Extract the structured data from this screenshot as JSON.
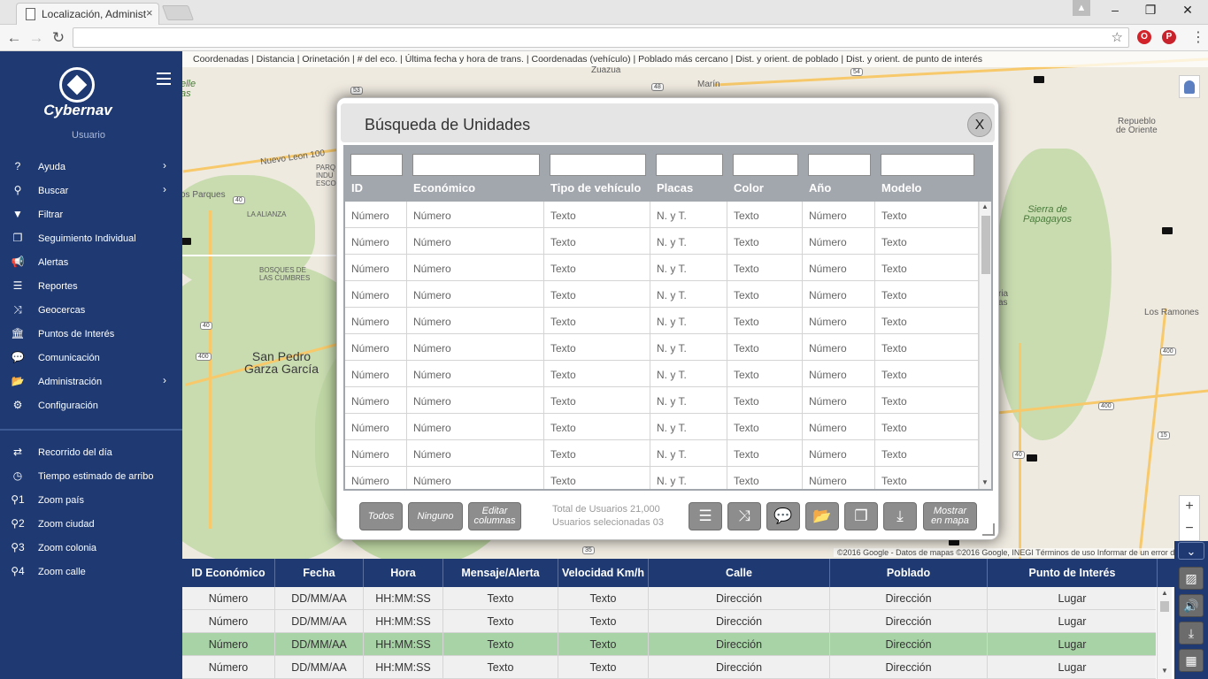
{
  "browser": {
    "tab_title": "Localización, Administrac",
    "tab_close": "×",
    "win_minimize": "–",
    "win_restore": "❐",
    "win_close": "✕",
    "back": "←",
    "forward": "→",
    "reload": "↻",
    "star": "☆",
    "opera_glyph": "O",
    "pinterest_glyph": "P",
    "menu": "⋮",
    "profile_glyph": "▲"
  },
  "sidebar": {
    "brand": "Cybernav",
    "user": "Usuario",
    "menu": [
      {
        "icon": "?",
        "icon_name": "help-icon",
        "label": "Ayuda",
        "chevron": true
      },
      {
        "icon": "⚲",
        "icon_name": "search-icon",
        "label": "Buscar",
        "chevron": true
      },
      {
        "icon": "▼",
        "icon_name": "filter-icon",
        "label": "Filtrar",
        "chevron": false
      },
      {
        "icon": "❐",
        "icon_name": "windows-icon",
        "label": "Seguimiento Individual",
        "chevron": false
      },
      {
        "icon": "📢",
        "icon_name": "megaphone-icon",
        "label": "Alertas",
        "chevron": false
      },
      {
        "icon": "☰",
        "icon_name": "list-icon",
        "label": "Reportes",
        "chevron": false
      },
      {
        "icon": "⤨",
        "icon_name": "shuffle-icon",
        "label": "Geocercas",
        "chevron": false
      },
      {
        "icon": "🏛",
        "icon_name": "bank-icon",
        "label": "Puntos de Interés",
        "chevron": false
      },
      {
        "icon": "💬",
        "icon_name": "chat-icon",
        "label": "Comunicación",
        "chevron": false
      },
      {
        "icon": "📂",
        "icon_name": "folder-icon",
        "label": "Administración",
        "chevron": true
      },
      {
        "icon": "⚙",
        "icon_name": "gears-icon",
        "label": "Configuración",
        "chevron": false
      }
    ],
    "menu2": [
      {
        "icon": "⇄",
        "icon_name": "retweet-icon",
        "label": "Recorrido del día"
      },
      {
        "icon": "◷",
        "icon_name": "clock-icon",
        "label": "Tiempo estimado de arribo"
      },
      {
        "icon": "⚲1",
        "icon_name": "zoom-1-icon",
        "label": "Zoom país"
      },
      {
        "icon": "⚲2",
        "icon_name": "zoom-2-icon",
        "label": "Zoom ciudad"
      },
      {
        "icon": "⚲3",
        "icon_name": "zoom-3-icon",
        "label": "Zoom colonia"
      },
      {
        "icon": "⚲4",
        "icon_name": "zoom-4-icon",
        "label": "Zoom calle"
      }
    ],
    "chevron_glyph": "›"
  },
  "map": {
    "columns_bar": "Coordenadas | Distancia | Orinetación | # del eco. | Última fecha y hora de trans. | Coordenadas (vehículo) | Poblado más cercano | Dist. y orient. de poblado | Dist. y orient. de punto de interés",
    "labels": {
      "zuazua": "Zuazua",
      "marin": "Marín",
      "nuevo_leon": "Nuevo Leon 100",
      "parques": "os Parques",
      "la_alianza": "LA ALIANZA",
      "bosques": "BOSQUES DE\nLAS CUMBRES",
      "san_pedro": "San Pedro\nGarza García",
      "repueblo": "Repueblo\nde Oriente",
      "sierra": "Sierra de\nPapagayos",
      "los_ramones": "Los Ramones",
      "parq_ind": "PARQ\nINDU\nESCO",
      "elle": "elle\nas",
      "ria": "ria\nas"
    },
    "shields": {
      "s53": "53",
      "s48": "48",
      "s54": "54",
      "s40a": "40",
      "s40b": "40",
      "s400a": "400",
      "s400b": "400",
      "s400c": "400",
      "s400d": "400",
      "s15": "15",
      "s40c": "40",
      "s35": "35"
    },
    "zoom_in": "+",
    "zoom_out": "−",
    "attribution": "©2016 Google - Datos de mapas ©2016 Google, INEGI    Términos de uso    Informar de un error de"
  },
  "modal": {
    "title": "Búsqueda de Unidades",
    "close": "X",
    "columns": [
      "ID",
      "Económico",
      "Tipo de vehículo",
      "Placas",
      "Color",
      "Año",
      "Modelo"
    ],
    "rows": [
      [
        "Número",
        "Número",
        "Texto",
        "N. y T.",
        "Texto",
        "Número",
        "Texto"
      ],
      [
        "Número",
        "Número",
        "Texto",
        "N. y T.",
        "Texto",
        "Número",
        "Texto"
      ],
      [
        "Número",
        "Número",
        "Texto",
        "N. y T.",
        "Texto",
        "Número",
        "Texto"
      ],
      [
        "Número",
        "Número",
        "Texto",
        "N. y T.",
        "Texto",
        "Número",
        "Texto"
      ],
      [
        "Número",
        "Número",
        "Texto",
        "N. y T.",
        "Texto",
        "Número",
        "Texto"
      ],
      [
        "Número",
        "Número",
        "Texto",
        "N. y T.",
        "Texto",
        "Número",
        "Texto"
      ],
      [
        "Número",
        "Número",
        "Texto",
        "N. y T.",
        "Texto",
        "Número",
        "Texto"
      ],
      [
        "Número",
        "Número",
        "Texto",
        "N. y T.",
        "Texto",
        "Número",
        "Texto"
      ],
      [
        "Número",
        "Número",
        "Texto",
        "N. y T.",
        "Texto",
        "Número",
        "Texto"
      ],
      [
        "Número",
        "Número",
        "Texto",
        "N. y T.",
        "Texto",
        "Número",
        "Texto"
      ],
      [
        "Número",
        "Número",
        "Texto",
        "N. y T.",
        "Texto",
        "Número",
        "Texto"
      ]
    ],
    "btn_all": "Todos",
    "btn_none": "Ninguno",
    "btn_edit_1": "Editar",
    "btn_edit_2": "columnas",
    "total": "Total de Usuarios 21,000",
    "selected": "Usuarios selecionadas 03",
    "icon_buttons": [
      {
        "glyph": "☰",
        "name": "list-view-icon"
      },
      {
        "glyph": "⤨",
        "name": "shuffle-icon"
      },
      {
        "glyph": "💬",
        "name": "message-icon"
      },
      {
        "glyph": "📂",
        "name": "folder-open-icon"
      },
      {
        "glyph": "❐",
        "name": "windows-icon"
      },
      {
        "glyph": "⤓",
        "name": "download-icon"
      }
    ],
    "btn_show_1": "Mostrar",
    "btn_show_2": "en mapa",
    "scroll_up": "▲",
    "scroll_down": "▼"
  },
  "bottom_table": {
    "columns": [
      "ID Económico",
      "Fecha",
      "Hora",
      "Mensaje/Alerta",
      "Velocidad Km/h",
      "Calle",
      "Poblado",
      "Punto de Interés"
    ],
    "rows": [
      [
        "Número",
        "DD/MM/AA",
        "HH:MM:SS",
        "Texto",
        "Texto",
        "Dirección",
        "Dirección",
        "Lugar"
      ],
      [
        "Número",
        "DD/MM/AA",
        "HH:MM:SS",
        "Texto",
        "Texto",
        "Dirección",
        "Dirección",
        "Lugar"
      ],
      [
        "Número",
        "DD/MM/AA",
        "HH:MM:SS",
        "Texto",
        "Texto",
        "Dirección",
        "Dirección",
        "Lugar"
      ],
      [
        "Número",
        "DD/MM/AA",
        "HH:MM:SS",
        "Texto",
        "Texto",
        "Dirección",
        "Dirección",
        "Lugar"
      ]
    ],
    "selected_row": 2,
    "selected_color": "#a8d3a6",
    "scroll_up": "▲",
    "scroll_down": "▼"
  },
  "right_tools": [
    {
      "glyph": "⌄",
      "name": "collapse-chevron-icon"
    },
    {
      "glyph": "▨",
      "name": "image-icon"
    },
    {
      "glyph": "🔊",
      "name": "volume-icon"
    },
    {
      "glyph": "⤓",
      "name": "download-icon"
    },
    {
      "glyph": "▦",
      "name": "table-icon"
    }
  ],
  "colors": {
    "brand_navy": "#1f3a72",
    "modal_header_gray": "#a2a6ad",
    "button_gray": "#8d8d8d"
  }
}
